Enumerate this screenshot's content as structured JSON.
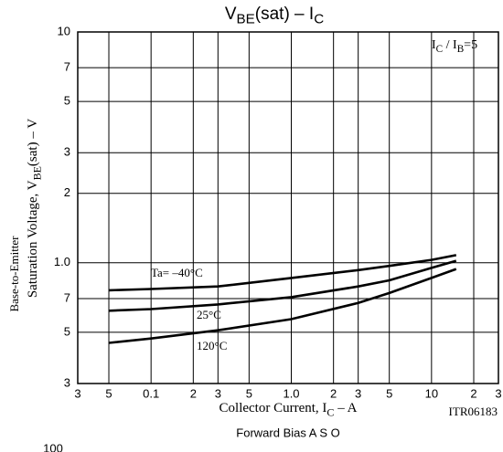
{
  "chart_data": {
    "type": "line",
    "title": [
      "V",
      "BE",
      "(sat)  –  I",
      "C"
    ],
    "annotation": [
      "I",
      "C",
      " / I",
      "B",
      "=5"
    ],
    "x_label": [
      "Collector Current, I",
      "C",
      "  –  A"
    ],
    "y_label_line1": "Base-to-Emitter",
    "y_label_line2": [
      "Saturation Voltage, V",
      "BE",
      "(sat)  –  V"
    ],
    "code": "ITR06183",
    "next_title": "Forward Bias A S O",
    "next_tick": "100",
    "log_x": true,
    "log_y": true,
    "grid": true,
    "xlim": [
      0.03,
      30
    ],
    "ylim": [
      0.3,
      10
    ],
    "xticks": [
      {
        "value": 0.03,
        "label": "3"
      },
      {
        "value": 0.05,
        "label": "5"
      },
      0.1,
      {
        "value": 0.2,
        "label": "2"
      },
      {
        "value": 0.3,
        "label": "3"
      },
      {
        "value": 0.5,
        "label": "5"
      },
      {
        "value": 1,
        "label": "1.0"
      },
      2,
      3,
      5,
      10,
      {
        "value": 20,
        "label": "2"
      },
      {
        "value": 30,
        "label": "3"
      }
    ],
    "yticks": [
      {
        "value": 0.3,
        "label": "3"
      },
      {
        "value": 0.5,
        "label": "5"
      },
      {
        "value": 0.7,
        "label": "7"
      },
      {
        "value": 1,
        "label": "1.0"
      },
      2,
      3,
      5,
      7,
      10
    ],
    "x": [
      0.05,
      0.1,
      0.3,
      1,
      3,
      5,
      10,
      15
    ],
    "series": [
      {
        "name": "Ta= –40°C",
        "color": "#000000",
        "values": [
          0.76,
          0.77,
          0.79,
          0.86,
          0.93,
          0.97,
          1.03,
          1.08
        ]
      },
      {
        "name": "25°C",
        "color": "#000000",
        "values": [
          0.62,
          0.63,
          0.66,
          0.71,
          0.79,
          0.84,
          0.95,
          1.02
        ]
      },
      {
        "name": "120°C",
        "color": "#000000",
        "values": [
          0.45,
          0.47,
          0.51,
          0.57,
          0.67,
          0.74,
          0.86,
          0.94
        ]
      }
    ]
  }
}
